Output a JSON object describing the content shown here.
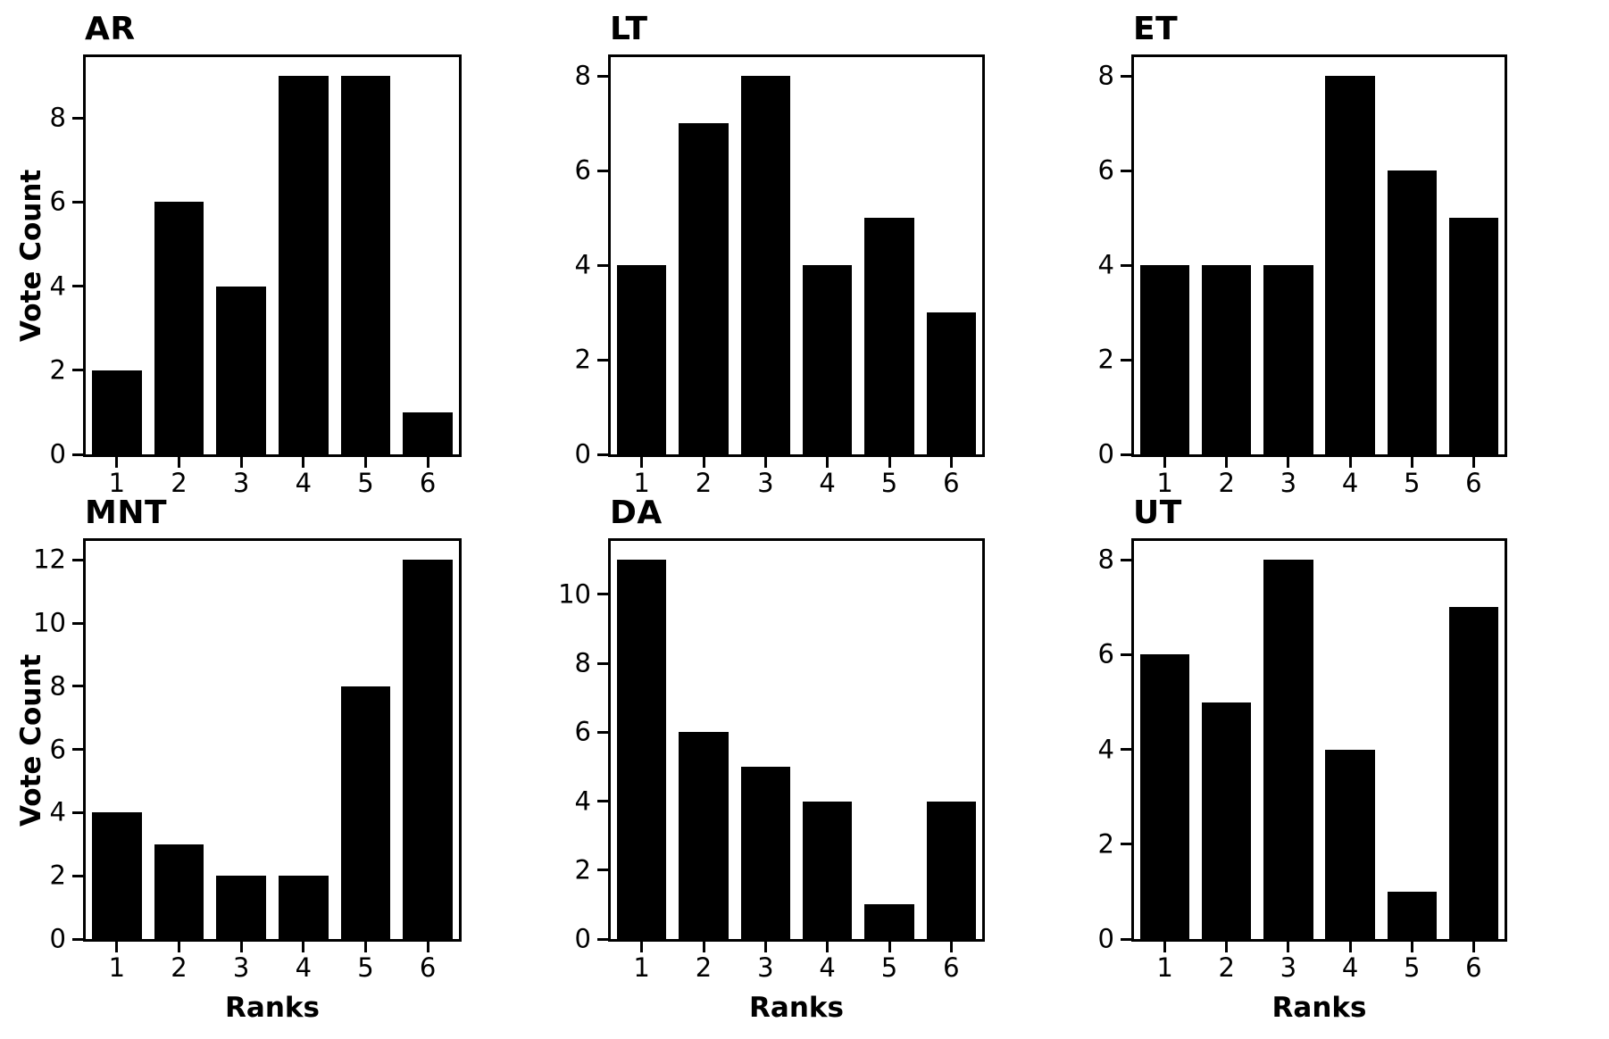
{
  "figure": {
    "background": "#ffffff",
    "bar_color": "#000000",
    "shared_ylabel": "Vote Count",
    "shared_xlabel": "Ranks"
  },
  "chart_data": [
    {
      "type": "bar",
      "title": "AR",
      "categories": [
        "1",
        "2",
        "3",
        "4",
        "5",
        "6"
      ],
      "values": [
        2,
        6,
        4,
        9,
        9,
        1
      ],
      "xlabel": "",
      "ylabel": "Vote Count",
      "ylim": [
        0,
        9.45
      ],
      "yticks": [
        0,
        2,
        4,
        6,
        8
      ],
      "grid": false,
      "legend": "none"
    },
    {
      "type": "bar",
      "title": "LT",
      "categories": [
        "1",
        "2",
        "3",
        "4",
        "5",
        "6"
      ],
      "values": [
        4,
        7,
        8,
        4,
        5,
        3
      ],
      "xlabel": "",
      "ylabel": "",
      "ylim": [
        0,
        8.4
      ],
      "yticks": [
        0,
        2,
        4,
        6,
        8
      ],
      "grid": false,
      "legend": "none"
    },
    {
      "type": "bar",
      "title": "ET",
      "categories": [
        "1",
        "2",
        "3",
        "4",
        "5",
        "6"
      ],
      "values": [
        4,
        4,
        4,
        8,
        6,
        5
      ],
      "xlabel": "",
      "ylabel": "",
      "ylim": [
        0,
        8.4
      ],
      "yticks": [
        0,
        2,
        4,
        6,
        8
      ],
      "grid": false,
      "legend": "none"
    },
    {
      "type": "bar",
      "title": "MNT",
      "categories": [
        "1",
        "2",
        "3",
        "4",
        "5",
        "6"
      ],
      "values": [
        4,
        3,
        2,
        2,
        8,
        12
      ],
      "xlabel": "Ranks",
      "ylabel": "Vote Count",
      "ylim": [
        0,
        12.6
      ],
      "yticks": [
        0,
        2,
        4,
        6,
        8,
        10,
        12
      ],
      "grid": false,
      "legend": "none"
    },
    {
      "type": "bar",
      "title": "DA",
      "categories": [
        "1",
        "2",
        "3",
        "4",
        "5",
        "6"
      ],
      "values": [
        11,
        6,
        5,
        4,
        1,
        4
      ],
      "xlabel": "Ranks",
      "ylabel": "",
      "ylim": [
        0,
        11.55
      ],
      "yticks": [
        0,
        2,
        4,
        6,
        8,
        10
      ],
      "grid": false,
      "legend": "none"
    },
    {
      "type": "bar",
      "title": "UT",
      "categories": [
        "1",
        "2",
        "3",
        "4",
        "5",
        "6"
      ],
      "values": [
        6,
        5,
        8,
        4,
        1,
        7
      ],
      "xlabel": "Ranks",
      "ylabel": "",
      "ylim": [
        0,
        8.4
      ],
      "yticks": [
        0,
        2,
        4,
        6,
        8
      ],
      "grid": false,
      "legend": "none"
    }
  ]
}
